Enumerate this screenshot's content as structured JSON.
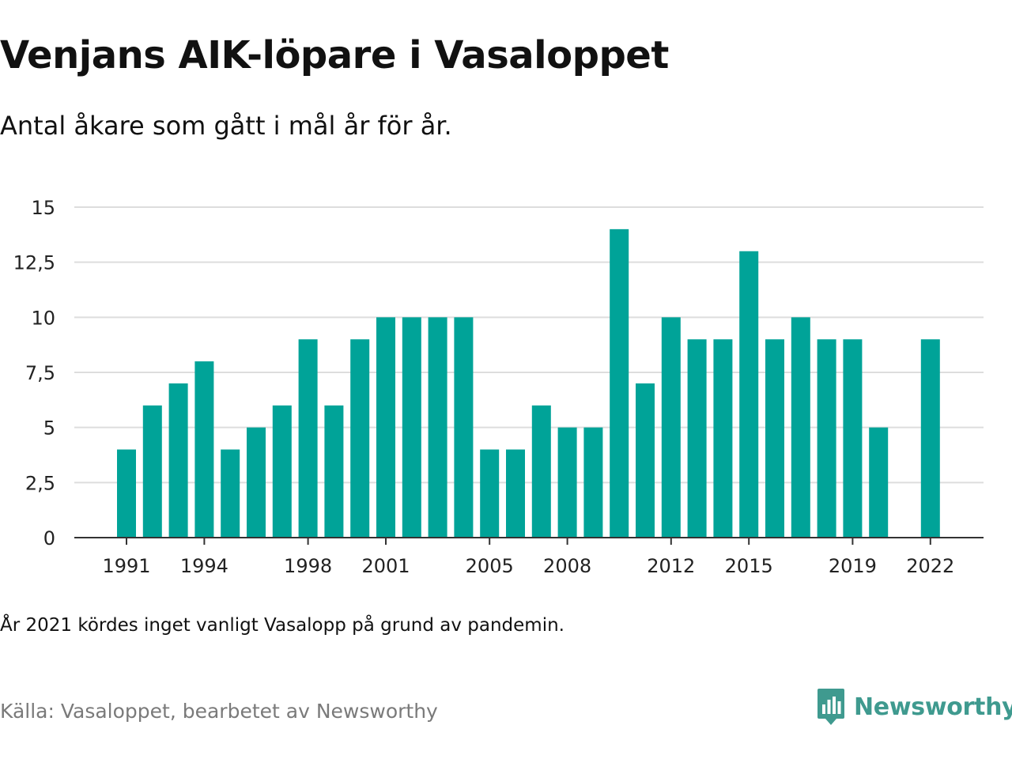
{
  "title": "Venjans AIK-löpare i Vasaloppet",
  "subtitle": "Antal åkare som gått i mål år för år.",
  "note": "År 2021 kördes inget vanligt Vasalopp på grund av pandemin.",
  "source": "Källa: Vasaloppet, bearbetet av Newsworthy",
  "brand": {
    "name": "Newsworthy",
    "icon": "newsworthy-logo-icon",
    "color": "#3f9a8f"
  },
  "colors": {
    "bar": "#00a398",
    "grid": "#dddddd",
    "axis": "#333333"
  },
  "chart_data": {
    "type": "bar",
    "title": "Venjans AIK-löpare i Vasaloppet",
    "xlabel": "",
    "ylabel": "",
    "categories": [
      "1991",
      "1992",
      "1993",
      "1994",
      "1995",
      "1996",
      "1997",
      "1998",
      "1999",
      "2000",
      "2001",
      "2002",
      "2003",
      "2004",
      "2005",
      "2006",
      "2007",
      "2008",
      "2009",
      "2010",
      "2011",
      "2012",
      "2013",
      "2014",
      "2015",
      "2016",
      "2017",
      "2018",
      "2019",
      "2020",
      "2021",
      "2022"
    ],
    "values": [
      4,
      6,
      7,
      8,
      4,
      5,
      6,
      9,
      6,
      9,
      10,
      10,
      10,
      10,
      4,
      4,
      6,
      5,
      5,
      14,
      7,
      10,
      9,
      9,
      13,
      9,
      10,
      9,
      9,
      5,
      null,
      9
    ],
    "x_tick_labels": [
      "1991",
      "1994",
      "1998",
      "2001",
      "2005",
      "2008",
      "2012",
      "2015",
      "2019",
      "2022"
    ],
    "y_ticks": [
      0,
      2.5,
      5,
      7.5,
      10,
      12.5,
      15
    ],
    "y_tick_labels": [
      "0",
      "2,5",
      "5",
      "7,5",
      "10",
      "12,5",
      "15"
    ],
    "ylim": [
      0,
      15
    ],
    "grid": true,
    "legend": "none"
  }
}
